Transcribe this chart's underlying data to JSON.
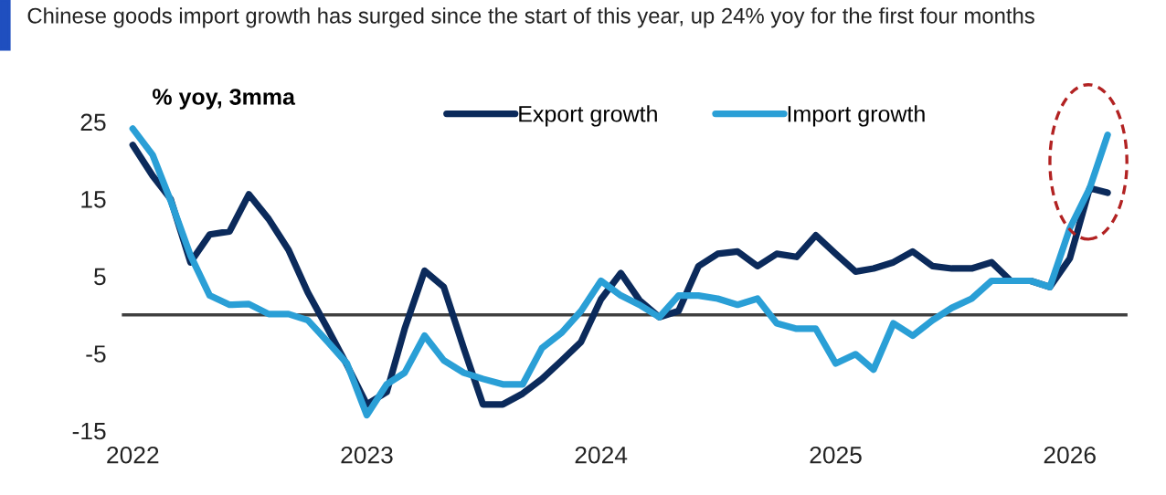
{
  "chart_data": {
    "type": "line",
    "subtitle": "Chinese goods import growth has surged since the start of this year, up 24% yoy for the first four months",
    "ylabel": "% yoy, 3mma",
    "x": [
      "2022-01",
      "2022-02",
      "2022-03",
      "2022-04",
      "2022-05",
      "2022-06",
      "2022-07",
      "2022-08",
      "2022-09",
      "2022-10",
      "2022-11",
      "2022-12",
      "2023-01",
      "2023-02",
      "2023-03",
      "2023-04",
      "2023-05",
      "2023-06",
      "2023-07",
      "2023-08",
      "2023-09",
      "2023-10",
      "2023-11",
      "2023-12",
      "2024-01",
      "2024-02",
      "2024-03",
      "2024-04",
      "2024-05",
      "2024-06",
      "2024-07",
      "2024-08",
      "2024-09",
      "2024-10",
      "2024-11",
      "2024-12",
      "2025-01",
      "2025-02",
      "2025-03",
      "2025-04",
      "2025-05",
      "2025-06",
      "2025-07",
      "2025-08",
      "2025-09",
      "2025-10",
      "2025-11",
      "2025-12",
      "2026-01",
      "2026-02",
      "2026-03"
    ],
    "series": [
      {
        "name": "Export growth",
        "color": "#0b2a5b",
        "values": [
          22,
          18,
          15,
          6.8,
          10.4,
          10.8,
          15.6,
          12.4,
          8.4,
          2.9,
          -1.8,
          -6.5,
          -11.6,
          -10,
          -1.8,
          5.7,
          3.6,
          -4.3,
          -11.6,
          -11.6,
          -10.2,
          -8.3,
          -5.9,
          -3.5,
          2,
          5.4,
          1.9,
          -0.3,
          0.5,
          6.3,
          7.9,
          8.2,
          6.3,
          7.9,
          7.5,
          10.3,
          7.9,
          5.6,
          6,
          6.8,
          8.2,
          6.3,
          6,
          6,
          6.8,
          4.4,
          4.4,
          3.6,
          7.3,
          16.4,
          15.8
        ]
      },
      {
        "name": "Import growth",
        "color": "#2a9fd6",
        "values": [
          24.1,
          20.7,
          14.8,
          7.7,
          2.5,
          1.3,
          1.4,
          0.1,
          0.1,
          -0.7,
          -3.5,
          -6.3,
          -13,
          -9,
          -7.5,
          -2.7,
          -5.9,
          -7.5,
          -8.3,
          -9,
          -9,
          -4.3,
          -2.3,
          0.5,
          4.4,
          2.5,
          1.3,
          -0.3,
          2.5,
          2.5,
          2.1,
          1.3,
          2.1,
          -1.1,
          -1.8,
          -1.8,
          -6.3,
          -5.1,
          -7.1,
          -1.1,
          -2.7,
          -0.7,
          0.9,
          2.1,
          4.4,
          4.4,
          4.4,
          3.6,
          11.2,
          16.4,
          23.3
        ]
      }
    ],
    "xlim": [
      "2021-12-15",
      "2026-04-01"
    ],
    "xticks": [
      {
        "value": "2022-01-01",
        "label": "2022"
      },
      {
        "value": "2023-01-01",
        "label": "2023"
      },
      {
        "value": "2024-01-01",
        "label": "2024"
      },
      {
        "value": "2025-01-01",
        "label": "2025"
      },
      {
        "value": "2026-01-01",
        "label": "2026"
      }
    ],
    "ylim": [
      -15,
      25
    ],
    "yticks": [
      25,
      15,
      5,
      -5,
      -15
    ],
    "ref_lines": [
      {
        "axis": "y",
        "value": 0,
        "color": "#404040"
      }
    ],
    "grid": false,
    "legend": "top right",
    "line_style": "solid",
    "marker": "none"
  }
}
